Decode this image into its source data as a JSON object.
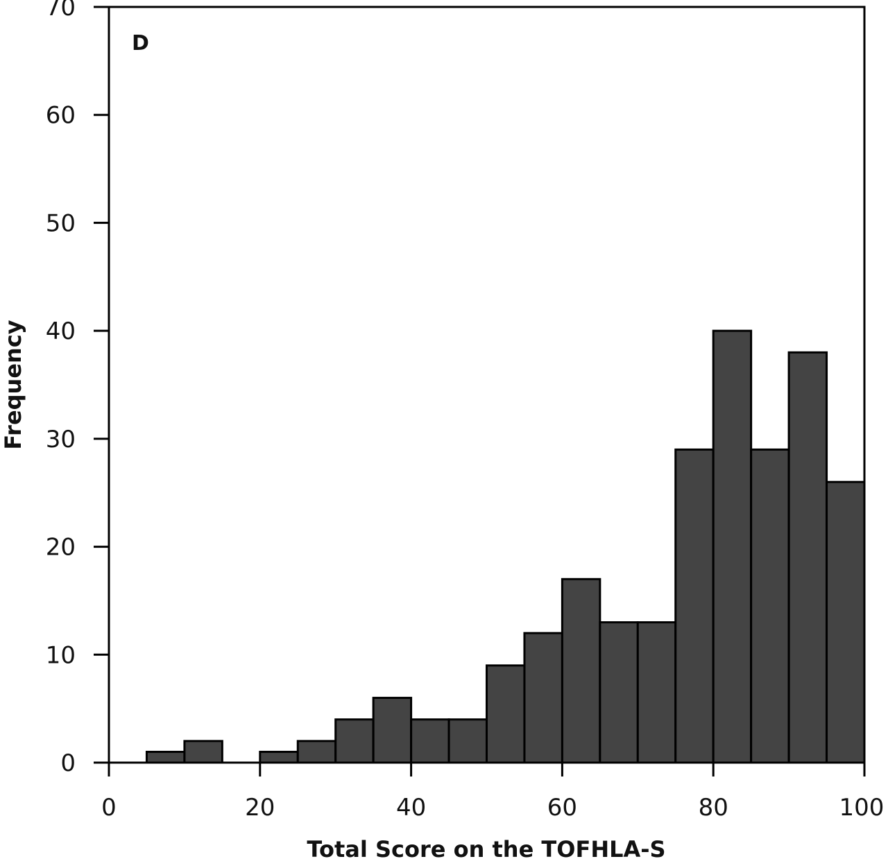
{
  "chart_data": {
    "type": "bar",
    "subtype": "histogram",
    "panel_label": "D",
    "xlabel": "Total Score on the TOFHLA-S",
    "ylabel": "Frequency",
    "xlim": [
      0,
      100
    ],
    "ylim": [
      0,
      70
    ],
    "xticks": [
      0,
      20,
      40,
      60,
      80,
      100
    ],
    "yticks": [
      0,
      10,
      20,
      30,
      40,
      50,
      60,
      70
    ],
    "grid": false,
    "bar_color": "#444444",
    "bin_width": 5,
    "bins": [
      {
        "start": 5,
        "end": 10,
        "count": 1
      },
      {
        "start": 10,
        "end": 15,
        "count": 2
      },
      {
        "start": 15,
        "end": 20,
        "count": 0
      },
      {
        "start": 20,
        "end": 25,
        "count": 1
      },
      {
        "start": 25,
        "end": 30,
        "count": 2
      },
      {
        "start": 30,
        "end": 35,
        "count": 4
      },
      {
        "start": 35,
        "end": 40,
        "count": 6
      },
      {
        "start": 40,
        "end": 45,
        "count": 4
      },
      {
        "start": 45,
        "end": 50,
        "count": 4
      },
      {
        "start": 50,
        "end": 55,
        "count": 9
      },
      {
        "start": 55,
        "end": 60,
        "count": 12
      },
      {
        "start": 60,
        "end": 65,
        "count": 17
      },
      {
        "start": 65,
        "end": 70,
        "count": 13
      },
      {
        "start": 70,
        "end": 75,
        "count": 13
      },
      {
        "start": 75,
        "end": 80,
        "count": 29
      },
      {
        "start": 80,
        "end": 85,
        "count": 40
      },
      {
        "start": 85,
        "end": 90,
        "count": 29
      },
      {
        "start": 90,
        "end": 95,
        "count": 38
      },
      {
        "start": 95,
        "end": 100,
        "count": 26
      }
    ]
  }
}
